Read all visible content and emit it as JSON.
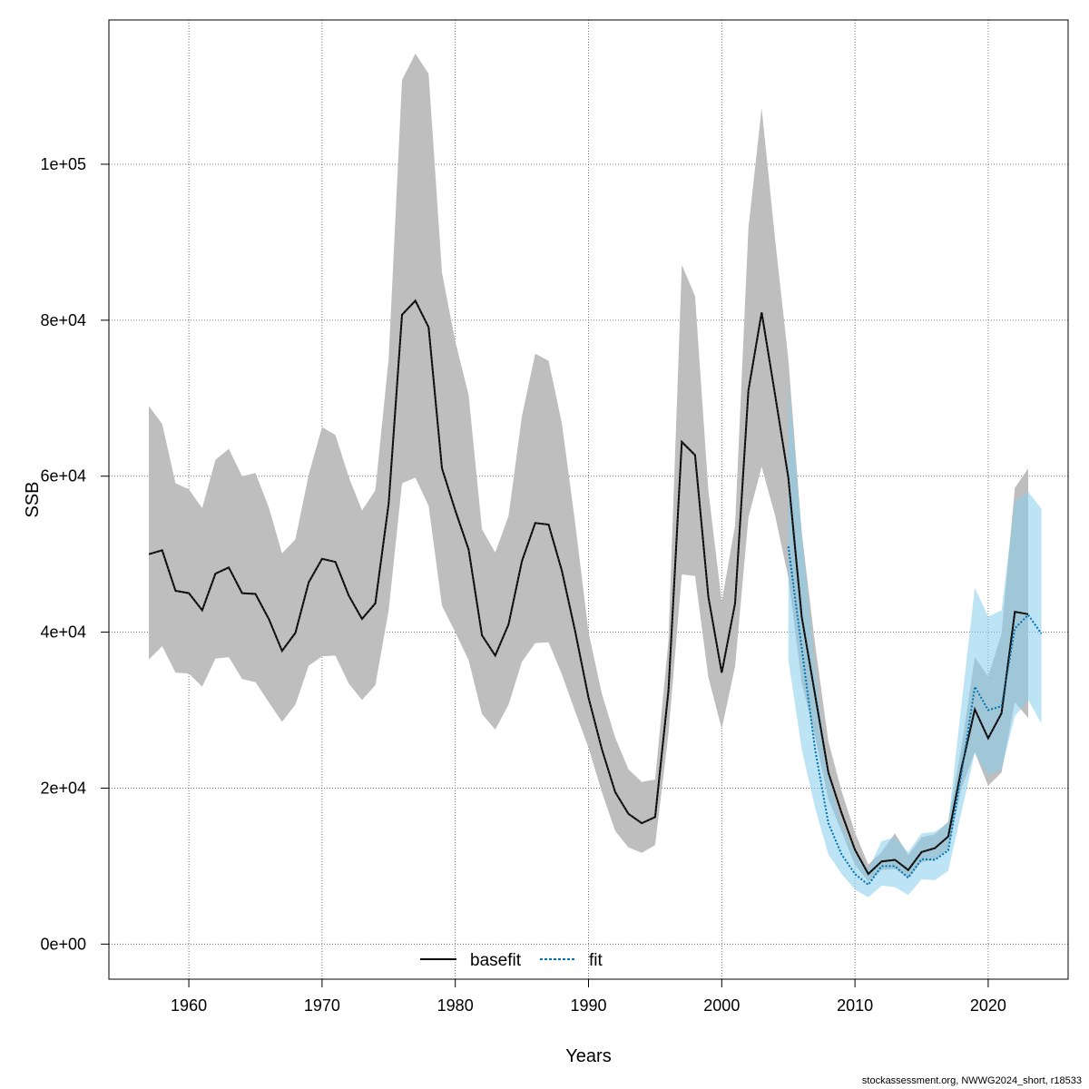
{
  "chart_data": {
    "type": "line",
    "xlabel": "Years",
    "ylabel": "SSB",
    "xlim": [
      1954,
      2026
    ],
    "ylim": [
      -4500,
      118500
    ],
    "xticks": [
      1960,
      1970,
      1980,
      1990,
      2000,
      2010,
      2020
    ],
    "yticks": [
      0,
      20000,
      40000,
      60000,
      80000,
      100000
    ],
    "ytick_labels": [
      "0e+00",
      "2e+04",
      "4e+04",
      "6e+04",
      "8e+04",
      "1e+05"
    ],
    "grid": true,
    "legend_position": "bottom",
    "series": [
      {
        "name": "basefit",
        "line_color": "#000000",
        "band_color": "#bebebe",
        "line_style": "solid",
        "x": [
          1957,
          1958,
          1959,
          1960,
          1961,
          1962,
          1963,
          1964,
          1965,
          1966,
          1967,
          1968,
          1969,
          1970,
          1971,
          1972,
          1973,
          1974,
          1975,
          1976,
          1977,
          1978,
          1979,
          1980,
          1981,
          1982,
          1983,
          1984,
          1985,
          1986,
          1987,
          1988,
          1989,
          1990,
          1991,
          1992,
          1993,
          1994,
          1995,
          1996,
          1997,
          1998,
          1999,
          2000,
          2001,
          2002,
          2003,
          2004,
          2005,
          2006,
          2007,
          2008,
          2009,
          2010,
          2011,
          2012,
          2013,
          2014,
          2015,
          2016,
          2017,
          2018,
          2019,
          2020,
          2021,
          2022,
          2023
        ],
        "y": [
          50000,
          50500,
          45300,
          45000,
          42800,
          47500,
          48300,
          45000,
          44900,
          41700,
          37600,
          39900,
          46400,
          49400,
          49000,
          44700,
          41700,
          43700,
          56500,
          80700,
          82500,
          79100,
          61000,
          55600,
          50600,
          39600,
          37000,
          41000,
          49100,
          54000,
          53800,
          47900,
          40100,
          31600,
          25000,
          19500,
          16700,
          15500,
          16300,
          32500,
          64400,
          62700,
          44500,
          34800,
          43700,
          71000,
          81000,
          70500,
          59800,
          42000,
          32000,
          22000,
          16800,
          12100,
          9000,
          10600,
          10800,
          9500,
          11800,
          12300,
          13800,
          22600,
          30100,
          26400,
          29600,
          42600,
          42300
        ],
        "lower": [
          36500,
          38200,
          34800,
          34700,
          33000,
          36600,
          36800,
          34000,
          33600,
          31000,
          28500,
          30700,
          35700,
          36900,
          37000,
          33400,
          31300,
          33200,
          42800,
          59100,
          59800,
          56200,
          43400,
          40000,
          36400,
          29500,
          27500,
          30700,
          36200,
          38600,
          38700,
          34600,
          29800,
          25200,
          19500,
          14500,
          12400,
          11700,
          12700,
          27000,
          47400,
          47200,
          34200,
          27600,
          35600,
          54700,
          61200,
          55000,
          47000,
          33500,
          26600,
          18600,
          14400,
          10200,
          8000,
          9500,
          9600,
          8500,
          10500,
          10800,
          12100,
          20000,
          24600,
          20300,
          22000,
          31000,
          29000
        ],
        "upper": [
          69000,
          66700,
          59100,
          58300,
          55900,
          62100,
          63500,
          60000,
          60400,
          56000,
          50100,
          51900,
          60200,
          66300,
          65300,
          59900,
          55600,
          58200,
          75100,
          110800,
          114200,
          111600,
          86100,
          77300,
          70400,
          53200,
          50200,
          54900,
          67700,
          75700,
          74800,
          66800,
          54000,
          40000,
          32100,
          26500,
          22400,
          20800,
          21100,
          38900,
          87100,
          83100,
          58100,
          43900,
          53700,
          91800,
          107200,
          90500,
          75000,
          52800,
          38500,
          26000,
          19600,
          14300,
          10200,
          11800,
          14200,
          11400,
          13700,
          14100,
          15700,
          25400,
          36800,
          34300,
          39800,
          58500,
          61000
        ]
      },
      {
        "name": "fit",
        "line_color": "#0072b2",
        "band_color": "#87ceeb",
        "line_style": "dotted",
        "x": [
          2005,
          2006,
          2007,
          2008,
          2009,
          2010,
          2011,
          2012,
          2013,
          2014,
          2015,
          2016,
          2017,
          2018,
          2019,
          2020,
          2021,
          2022,
          2023,
          2024
        ],
        "y": [
          51000,
          38000,
          25000,
          15500,
          11500,
          9000,
          7600,
          10000,
          10000,
          8500,
          10900,
          10800,
          12000,
          22000,
          33000,
          30000,
          30500,
          40500,
          42200,
          39800
        ],
        "lower": [
          36500,
          25000,
          17500,
          11500,
          9000,
          7000,
          6000,
          7500,
          7300,
          6300,
          8300,
          8200,
          9400,
          17000,
          24500,
          21600,
          22400,
          29200,
          31300,
          28300
        ],
        "upper": [
          72000,
          53000,
          35500,
          21500,
          15500,
          11800,
          9600,
          13200,
          13700,
          11800,
          14200,
          14400,
          15600,
          30800,
          45700,
          42000,
          42800,
          56800,
          58000,
          55800
        ]
      }
    ]
  },
  "footer": "stockassessment.org, NWWG2024_short, r18533"
}
